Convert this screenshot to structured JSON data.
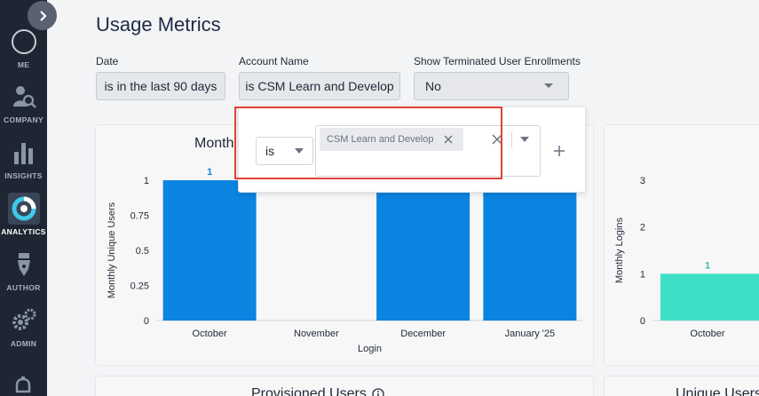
{
  "sidebar": {
    "items": [
      {
        "label": "ME",
        "icon": "profile-circle-icon"
      },
      {
        "label": "COMPANY",
        "icon": "company-search-icon"
      },
      {
        "label": "INSIGHTS",
        "icon": "bar-chart-icon"
      },
      {
        "label": "ANALYTICS",
        "icon": "analytics-pie-icon",
        "active": true
      },
      {
        "label": "AUTHOR",
        "icon": "pen-nib-icon"
      },
      {
        "label": "ADMIN",
        "icon": "gears-icon"
      }
    ]
  },
  "header": {
    "title": "Usage Metrics"
  },
  "filters": {
    "date": {
      "label": "Date",
      "value": "is in the last 90 days"
    },
    "account": {
      "label": "Account Name",
      "value": "is CSM Learn and Develop"
    },
    "terminated": {
      "label": "Show Terminated User Enrollments",
      "value": "No"
    }
  },
  "popover": {
    "operator": "is",
    "chip": "CSM Learn and Develop"
  },
  "cards": {
    "left_title": "Monthl",
    "bottom_left_title": "Provisioned Users",
    "bottom_right_title": "Unique Users"
  },
  "colors": {
    "bar_primary": "#0a84e0",
    "bar_teal": "#3de0c6",
    "sidebar_bg": "#1e2633",
    "highlight": "#e34234"
  },
  "chart_data": [
    {
      "type": "bar",
      "categories": [
        "October",
        "November",
        "December",
        "January '25"
      ],
      "values": [
        1,
        0,
        1,
        1
      ],
      "data_labels": [
        "1",
        "",
        "",
        ""
      ],
      "xlabel": "Login",
      "ylabel": "Monthly Unique Users",
      "yticks": [
        "0",
        "0.25",
        "0.5",
        "0.75",
        "1"
      ],
      "ylim": [
        0,
        1
      ]
    },
    {
      "type": "bar",
      "categories": [
        "October"
      ],
      "values": [
        1
      ],
      "data_labels": [
        "1"
      ],
      "ylabel": "Monthly Logins",
      "yticks": [
        "0",
        "1",
        "2",
        "3"
      ],
      "ylim": [
        0,
        3
      ]
    }
  ]
}
